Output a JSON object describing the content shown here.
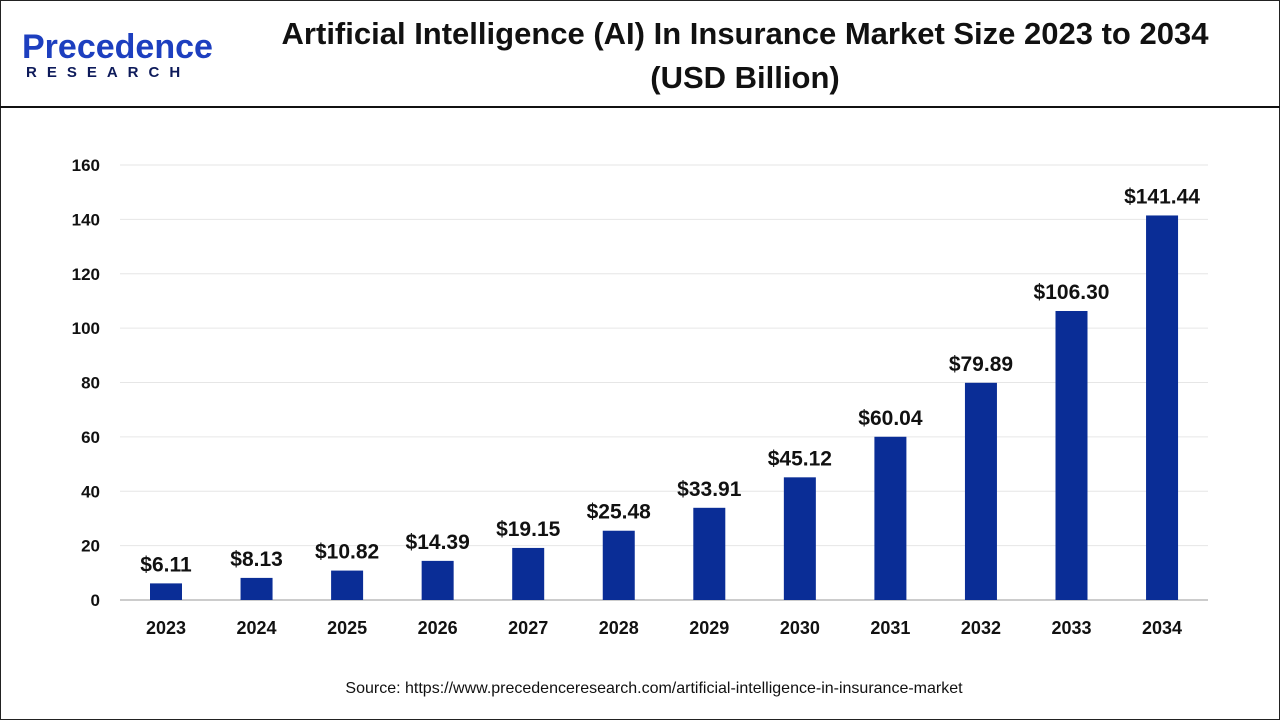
{
  "logo": {
    "line1": "Precedence",
    "line2": "RESEARCH"
  },
  "title": "Artificial Intelligence (AI) In Insurance Market Size 2023 to 2034 (USD Billion)",
  "source": "Source: https://www.precedenceresearch.com/artificial-intelligence-in-insurance-market",
  "chart_data": {
    "type": "bar",
    "title": "Artificial Intelligence (AI) In Insurance Market Size 2023 to 2034 (USD Billion)",
    "categories": [
      "2023",
      "2024",
      "2025",
      "2026",
      "2027",
      "2028",
      "2029",
      "2030",
      "2031",
      "2032",
      "2033",
      "2034"
    ],
    "values": [
      6.11,
      8.13,
      10.82,
      14.39,
      19.15,
      25.48,
      33.91,
      45.12,
      60.04,
      79.89,
      106.3,
      141.44
    ],
    "labels": [
      "$6.11",
      "$8.13",
      "$10.82",
      "$14.39",
      "$19.15",
      "$25.48",
      "$33.91",
      "$45.12",
      "$60.04",
      "$79.89",
      "$106.30",
      "$141.44"
    ],
    "ylim": [
      0,
      160
    ],
    "yticks": [
      0,
      20,
      40,
      60,
      80,
      100,
      120,
      140,
      160
    ],
    "grid": true,
    "bar_color": "#0a2d96"
  }
}
